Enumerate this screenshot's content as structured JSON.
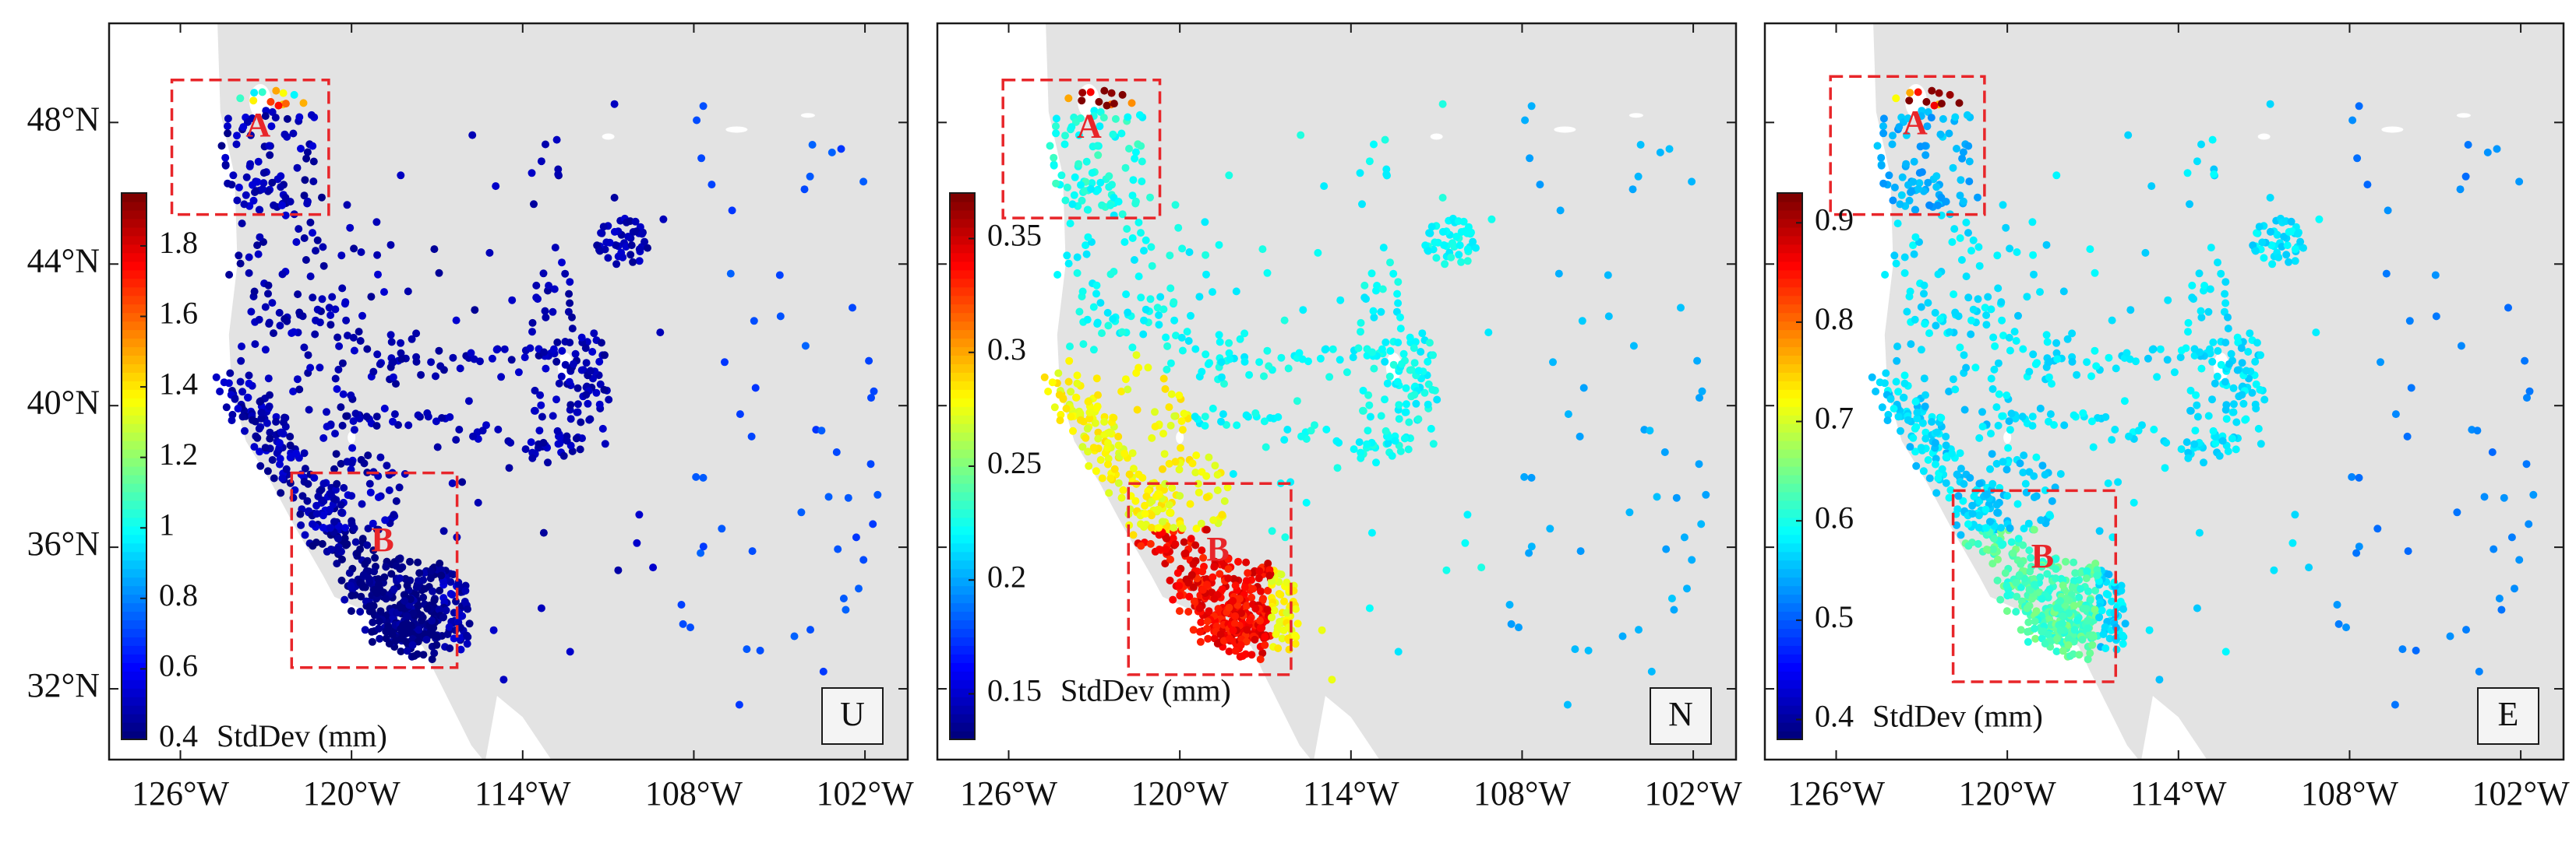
{
  "figure": {
    "lat_ticks": [
      "48°N",
      "44°N",
      "40°N",
      "36°N",
      "32°N"
    ],
    "lon_ticks": [
      "126°W",
      "120°W",
      "114°W",
      "108°W",
      "102°W"
    ],
    "lon_range": [
      -128.5,
      -100.5
    ],
    "lat_range": [
      30,
      50.8
    ],
    "colors": {
      "land": "#e3e3e3",
      "water": "#ffffff",
      "box": "#e8262a",
      "frame": "#1a1a1a",
      "letter": "#e8262a"
    },
    "colormap": "jet"
  },
  "panels": [
    {
      "component": "U",
      "colorbar": {
        "ticks": [
          "1.8",
          "1.6",
          "1.4",
          "1.2",
          "1",
          "0.8",
          "0.6",
          "0.4"
        ],
        "range": [
          0.4,
          1.95
        ],
        "unit_label": "StdDev (mm)"
      },
      "boxes": [
        {
          "label": "A",
          "lon": [
            -126.3,
            -120.8
          ],
          "lat": [
            45.4,
            49.2
          ]
        },
        {
          "label": "B",
          "lon": [
            -122.1,
            -116.3
          ],
          "lat": [
            32.6,
            38.1
          ]
        }
      ],
      "levels": {
        "base": 0.05,
        "coast": 0.05,
        "south": 0.0,
        "north": 0.2,
        "box_a": 0.05
      }
    },
    {
      "component": "N",
      "colorbar": {
        "ticks": [
          "0.35",
          "0.3",
          "0.25",
          "0.2",
          "0.15"
        ],
        "range": [
          0.13,
          0.37
        ],
        "unit_label": "StdDev (mm)"
      },
      "boxes": [
        {
          "label": "A",
          "lon": [
            -126.2,
            -120.7
          ],
          "lat": [
            45.3,
            49.2
          ]
        },
        {
          "label": "B",
          "lon": [
            -121.8,
            -116.1
          ],
          "lat": [
            32.4,
            37.8
          ]
        }
      ],
      "levels": {
        "base": 0.38,
        "coast": 0.62,
        "south": 0.88,
        "north": 0.3,
        "box_a": 0.4
      }
    },
    {
      "component": "E",
      "colorbar": {
        "ticks": [
          "0.9",
          "0.8",
          "0.7",
          "0.6",
          "0.5",
          "0.4"
        ],
        "range": [
          0.38,
          0.93
        ],
        "unit_label": "StdDev (mm)"
      },
      "boxes": [
        {
          "label": "A",
          "lon": [
            -126.2,
            -120.8
          ],
          "lat": [
            45.4,
            49.3
          ]
        },
        {
          "label": "B",
          "lon": [
            -121.9,
            -116.2
          ],
          "lat": [
            32.2,
            37.6
          ]
        }
      ],
      "levels": {
        "base": 0.35,
        "coast": 0.34,
        "south": 0.45,
        "north": 0.25,
        "box_a": 0.3
      }
    }
  ]
}
